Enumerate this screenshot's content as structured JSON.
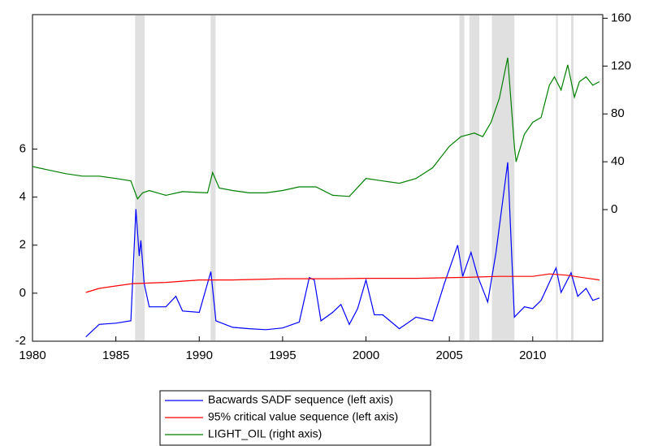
{
  "chart_data": {
    "type": "line",
    "xlim": [
      1980,
      2014.2
    ],
    "xticks": [
      1980,
      1985,
      1990,
      1995,
      2000,
      2005,
      2010
    ],
    "ylim": [
      -2,
      11.6
    ],
    "yticks": [
      -2,
      0,
      2,
      4,
      6
    ],
    "y2lim": [
      -110,
      163
    ],
    "y2ticks": [
      0,
      40,
      80,
      120,
      160
    ],
    "shade_color": "#e0e0e0",
    "shaded": [
      [
        1986.15,
        1986.73
      ],
      [
        1990.68,
        1990.98
      ],
      [
        2005.6,
        2005.9
      ],
      [
        2006.2,
        2006.8
      ],
      [
        2007.55,
        2008.9
      ],
      [
        2011.4,
        2011.5
      ],
      [
        2012.3,
        2012.45
      ]
    ],
    "series": [
      {
        "name": "Bacwards SADF sequence (left axis)",
        "color": "#0000ff",
        "axis": "y",
        "x": [
          1983.2,
          1984,
          1985,
          1985.9,
          1986.2,
          1986.4,
          1986.5,
          1986.7,
          1987,
          1988,
          1988.6,
          1989,
          1990,
          1990.7,
          1991,
          1992,
          1993,
          1994,
          1995,
          1996,
          1996.6,
          1996.9,
          1997.3,
          1998,
          1998.5,
          1999,
          1999.5,
          2000,
          2000.5,
          2001,
          2002,
          2003,
          2004,
          2004.7,
          2005.5,
          2005.8,
          2006.3,
          2006.7,
          2007.3,
          2007.8,
          2008.5,
          2008.9,
          2009.5,
          2010,
          2010.5,
          2011.4,
          2011.7,
          2012.3,
          2012.7,
          2013.2,
          2013.6,
          2014
        ],
        "values": [
          -1.82,
          -1.3,
          -1.25,
          -1.15,
          3.5,
          1.55,
          2.2,
          0.4,
          -0.57,
          -0.57,
          -0.13,
          -0.74,
          -0.8,
          0.9,
          -1.15,
          -1.42,
          -1.48,
          -1.52,
          -1.45,
          -1.2,
          0.65,
          0.55,
          -1.15,
          -0.8,
          -0.47,
          -1.3,
          -0.64,
          0.55,
          -0.9,
          -0.9,
          -1.48,
          -1.0,
          -1.15,
          0.4,
          2.0,
          0.7,
          1.7,
          0.7,
          -0.37,
          1.7,
          5.45,
          -1.0,
          -0.57,
          -0.64,
          -0.3,
          1.05,
          0.03,
          0.85,
          -0.13,
          0.2,
          -0.3,
          -0.2
        ]
      },
      {
        "name": "95% critical value sequence (left axis)",
        "color": "#ff0000",
        "axis": "y",
        "x": [
          1983.2,
          1984,
          1985,
          1986,
          1988,
          1990,
          1992,
          1995,
          1998,
          2000,
          2003,
          2006,
          2008,
          2010,
          2011,
          2012,
          2013,
          2014
        ],
        "values": [
          0.03,
          0.2,
          0.3,
          0.4,
          0.45,
          0.55,
          0.55,
          0.6,
          0.6,
          0.62,
          0.62,
          0.66,
          0.7,
          0.7,
          0.8,
          0.75,
          0.65,
          0.55
        ]
      },
      {
        "name": "LIGHT_OIL (right axis)",
        "color": "#008000",
        "axis": "y2",
        "x": [
          1980,
          1981,
          1982,
          1983,
          1984,
          1985,
          1985.9,
          1986.3,
          1986.6,
          1987,
          1988,
          1989,
          1990.5,
          1990.8,
          1991.2,
          1992,
          1993,
          1994,
          1995,
          1996,
          1997,
          1998,
          1999,
          2000,
          2001,
          2002,
          2003,
          2004,
          2005,
          2005.7,
          2006.5,
          2007,
          2007.5,
          2008,
          2008.5,
          2008.9,
          2009,
          2009.5,
          2010,
          2010.5,
          2011,
          2011.3,
          2011.7,
          2012.1,
          2012.5,
          2012.8,
          2013.2,
          2013.6,
          2014
        ],
        "values": [
          36,
          33,
          30,
          28,
          28,
          26,
          24,
          9,
          14,
          16,
          12,
          15,
          14,
          31,
          18,
          16,
          14,
          14,
          16,
          19,
          19,
          12,
          11,
          26,
          24,
          22,
          26,
          35,
          53,
          61,
          64,
          61,
          73,
          93,
          127,
          53,
          40,
          63,
          73,
          77,
          104,
          111,
          100,
          121,
          94,
          107,
          111,
          104,
          107
        ]
      }
    ]
  }
}
